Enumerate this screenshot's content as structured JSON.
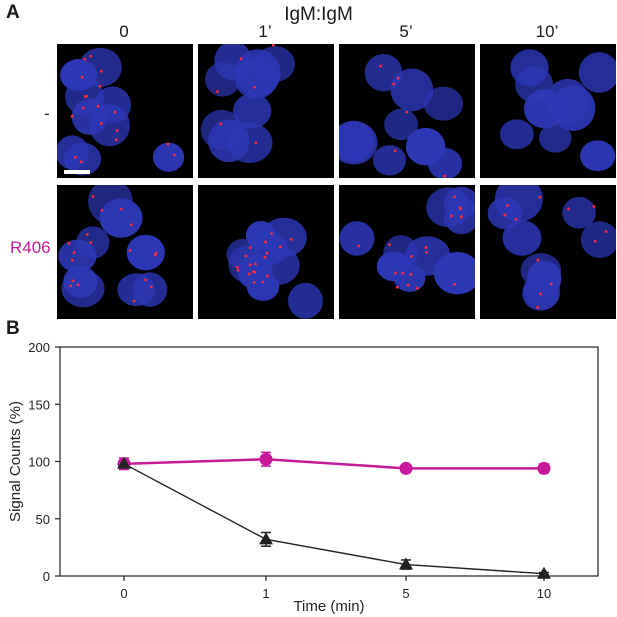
{
  "panel_a": {
    "letter": "A",
    "title": "IgM:IgM",
    "columns": [
      "0",
      "1’",
      "5’",
      "10’"
    ],
    "rows": [
      {
        "label": "-",
        "color": "#222222"
      },
      {
        "label": "R406",
        "color": "#c8199a"
      }
    ],
    "stain_colors": {
      "nuclei": "#2c37b5",
      "puncta": "#ff2a3c",
      "background": "#000000"
    },
    "scale_bar": "white-bar"
  },
  "panel_b": {
    "letter": "B",
    "y_ticks": [
      "0",
      "50",
      "100",
      "150",
      "200"
    ],
    "x_ticks": [
      "0",
      "1",
      "5",
      "10"
    ],
    "ylabel": "Signal Counts (%)",
    "xlabel": "Time (min)"
  },
  "chart_data": {
    "type": "line",
    "categories": [
      "0",
      "1",
      "5",
      "10"
    ],
    "xlabel": "Time (min)",
    "ylabel": "Signal Counts (%)",
    "ylim": [
      0,
      200
    ],
    "grid": false,
    "series": [
      {
        "marker": "circle",
        "color": "#c8199a",
        "values": [
          98,
          102,
          94,
          94
        ],
        "errors": [
          5,
          6,
          3,
          4
        ]
      },
      {
        "marker": "triangle",
        "color": "#222222",
        "values": [
          98,
          32,
          10,
          2
        ],
        "errors": [
          0,
          6,
          4,
          1
        ]
      }
    ]
  }
}
